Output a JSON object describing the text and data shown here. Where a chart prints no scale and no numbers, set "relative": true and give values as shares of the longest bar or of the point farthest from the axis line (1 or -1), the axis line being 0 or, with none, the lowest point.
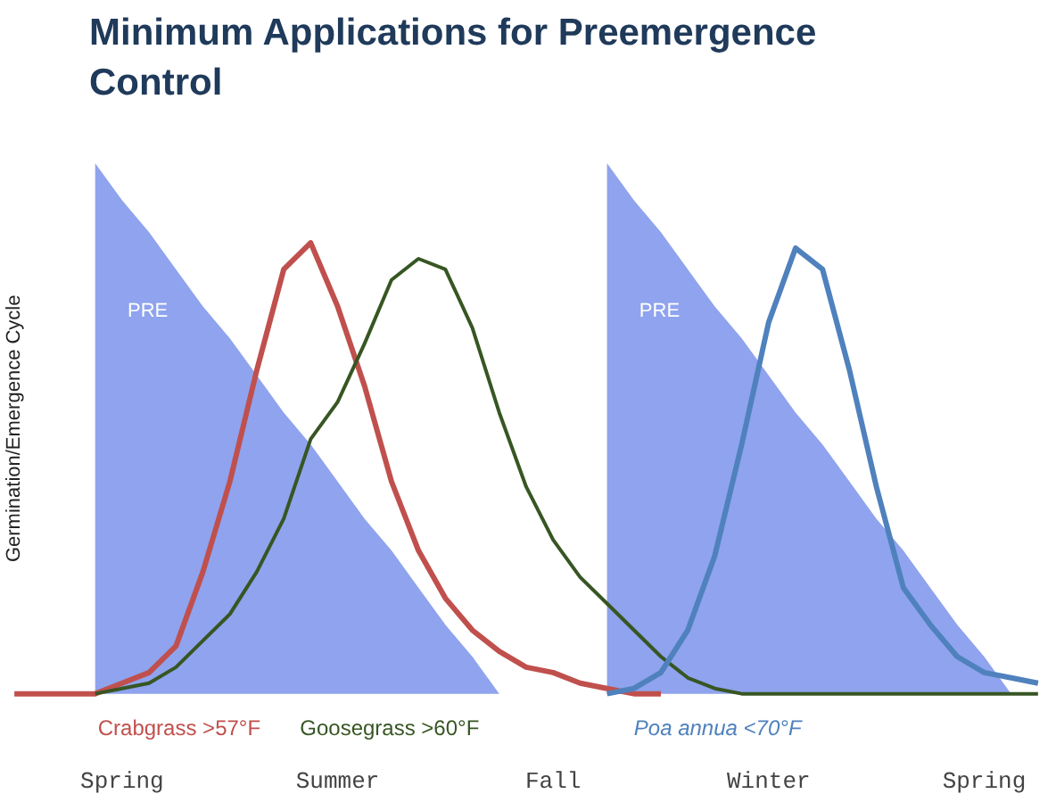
{
  "chart_data": {
    "type": "line",
    "title": "Minimum Applications for Preemergence Control",
    "ylabel": "Germination/Emergence Cycle",
    "relative": true,
    "grid": false,
    "categories": [
      null,
      null,
      null,
      null,
      "Spring",
      null,
      null,
      null,
      null,
      null,
      null,
      null,
      "Summer",
      null,
      null,
      null,
      null,
      null,
      null,
      null,
      "Fall",
      null,
      null,
      null,
      null,
      null,
      null,
      null,
      "Winter",
      null,
      null,
      null,
      null,
      null,
      null,
      null,
      "Spring",
      null,
      null
    ],
    "series": [
      {
        "type": "area",
        "name": "PRE",
        "color": "#8fa3ee",
        "values": [
          null,
          null,
          null,
          1,
          0.93,
          0.87,
          0.8,
          0.73,
          0.67,
          0.6,
          0.53,
          0.47,
          0.4,
          0.33,
          0.27,
          0.2,
          0.13,
          0.07,
          0,
          null,
          null,
          null,
          null,
          null,
          null,
          null,
          null,
          null,
          null,
          null,
          null,
          null,
          null,
          null,
          null,
          null,
          null,
          null,
          null
        ]
      },
      {
        "type": "area",
        "name": "PRE",
        "color": "#8fa3ee",
        "values": [
          null,
          null,
          null,
          null,
          null,
          null,
          null,
          null,
          null,
          null,
          null,
          null,
          null,
          null,
          null,
          null,
          null,
          null,
          null,
          null,
          null,
          null,
          1,
          0.93,
          0.87,
          0.8,
          0.73,
          0.67,
          0.6,
          0.53,
          0.47,
          0.4,
          0.33,
          0.27,
          0.2,
          0.13,
          0.07,
          0,
          null
        ]
      },
      {
        "name": "Crabgrass >57°F",
        "color": "#c0504d",
        "values": [
          0,
          0,
          0,
          0,
          0.02,
          0.04,
          0.09,
          0.23,
          0.4,
          0.61,
          0.8,
          0.85,
          0.73,
          0.58,
          0.4,
          0.27,
          0.18,
          0.12,
          0.08,
          0.05,
          0.04,
          0.02,
          0.01,
          0,
          0,
          null,
          null,
          null,
          null,
          null,
          null,
          null,
          null,
          null,
          null,
          null,
          null,
          null,
          null
        ]
      },
      {
        "name": "Goosegrass >60°F",
        "color": "#375623",
        "values": [
          null,
          null,
          null,
          0,
          0.01,
          0.02,
          0.05,
          0.1,
          0.15,
          0.23,
          0.33,
          0.48,
          0.55,
          0.66,
          0.78,
          0.82,
          0.8,
          0.69,
          0.53,
          0.39,
          0.29,
          0.22,
          0.17,
          0.12,
          0.07,
          0.03,
          0.01,
          0,
          0,
          0,
          0,
          0,
          0,
          0,
          0,
          0,
          0,
          0,
          0
        ]
      },
      {
        "name": "Poa annua <70°F",
        "color": "#4f81bd",
        "values": [
          null,
          null,
          null,
          null,
          null,
          null,
          null,
          null,
          null,
          null,
          null,
          null,
          null,
          null,
          null,
          null,
          null,
          null,
          null,
          null,
          null,
          null,
          0,
          0.01,
          0.04,
          0.12,
          0.26,
          0.47,
          0.7,
          0.84,
          0.8,
          0.61,
          0.39,
          0.2,
          0.13,
          0.07,
          0.04,
          0.03,
          0.02
        ]
      }
    ]
  }
}
